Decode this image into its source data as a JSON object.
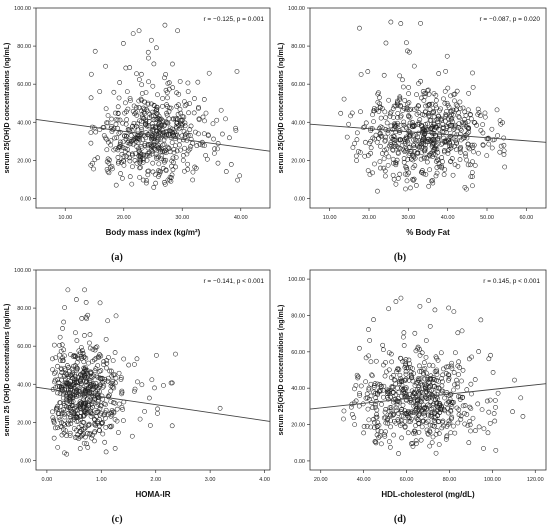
{
  "chart_data": [
    {
      "type": "scatter",
      "panel_label": "(a)",
      "annotation": "r = −0.125, p = 0.001",
      "xlabel": "Body mass index (kg/m²)",
      "ylabel": "serum 25(OH)D concentrations (ng/mL)",
      "xlim": [
        5.0,
        45.0
      ],
      "ylim": [
        -5.0,
        100.0
      ],
      "xticks": [
        "10.00",
        "20.00",
        "30.00",
        "40.00"
      ],
      "yticks": [
        "0.00",
        "20.00",
        "40.00",
        "60.00",
        "80.00",
        "100.00"
      ],
      "fit_line": {
        "x": [
          5.0,
          45.0
        ],
        "y": [
          41.5,
          24.8
        ]
      },
      "points": {
        "x_range": [
          14.0,
          40.0
        ],
        "x_center": 24.0,
        "x_spread": 4.5,
        "y_range": [
          3.0,
          93.0
        ],
        "y_center": 32.0,
        "y_spread": 12.0,
        "count": 560
      }
    },
    {
      "type": "scatter",
      "panel_label": "(b)",
      "annotation": "r = −0.087, p = 0.020",
      "xlabel": "% Body Fat",
      "ylabel": "serum 25(OH)D concentrations (ng/mL)",
      "xlim": [
        5.0,
        65.0
      ],
      "ylim": [
        -5.0,
        100.0
      ],
      "xticks": [
        "10.00",
        "20.00",
        "30.00",
        "40.00",
        "50.00",
        "60.00"
      ],
      "yticks": [
        "0.00",
        "20.00",
        "40.00",
        "60.00",
        "80.00",
        "100.00"
      ],
      "fit_line": {
        "x": [
          5.0,
          65.0
        ],
        "y": [
          39.0,
          29.5
        ]
      },
      "points": {
        "x_range": [
          10.0,
          55.0
        ],
        "x_center": 33.0,
        "x_spread": 8.0,
        "y_range": [
          3.0,
          93.0
        ],
        "y_center": 33.0,
        "y_spread": 12.0,
        "count": 640
      }
    },
    {
      "type": "scatter",
      "panel_label": "(c)",
      "annotation": "r = −0.141, p < 0.001",
      "xlabel": "HOMA-IR",
      "ylabel": "serum 25 (OH)D concentrations (ng/mL)",
      "xlim": [
        -0.2,
        4.1
      ],
      "ylim": [
        -5.0,
        100.0
      ],
      "xticks": [
        "0.00",
        "1.00",
        "2.00",
        "3.00",
        "4.00"
      ],
      "yticks": [
        "0.00",
        "20.00",
        "40.00",
        "60.00",
        "80.00",
        "100.00"
      ],
      "fit_line": {
        "x": [
          -0.2,
          4.1
        ],
        "y": [
          38.5,
          20.5
        ]
      },
      "points": {
        "x_range": [
          0.1,
          3.3
        ],
        "x_center": 0.6,
        "x_spread": 0.35,
        "y_range": [
          3.0,
          92.0
        ],
        "y_center": 33.0,
        "y_spread": 12.0,
        "count": 600
      }
    },
    {
      "type": "scatter",
      "panel_label": "(d)",
      "annotation": "r = 0.145, p < 0.001",
      "xlabel": "HDL-cholesterol (mg/dL)",
      "ylabel": "serum 25(OH)D concentrations (ng/mL)",
      "xlim": [
        15.0,
        125.0
      ],
      "ylim": [
        -5.0,
        105.0
      ],
      "xticks": [
        "20.00",
        "40.00",
        "60.00",
        "80.00",
        "100.00",
        "120.00"
      ],
      "yticks": [
        "0.00",
        "20.00",
        "40.00",
        "60.00",
        "80.00",
        "100.00"
      ],
      "fit_line": {
        "x": [
          15.0,
          125.0
        ],
        "y": [
          28.5,
          42.5
        ]
      },
      "points": {
        "x_range": [
          30.0,
          115.0
        ],
        "x_center": 62.0,
        "x_spread": 14.0,
        "y_range": [
          3.0,
          92.0
        ],
        "y_center": 33.0,
        "y_spread": 12.0,
        "count": 620
      }
    }
  ]
}
